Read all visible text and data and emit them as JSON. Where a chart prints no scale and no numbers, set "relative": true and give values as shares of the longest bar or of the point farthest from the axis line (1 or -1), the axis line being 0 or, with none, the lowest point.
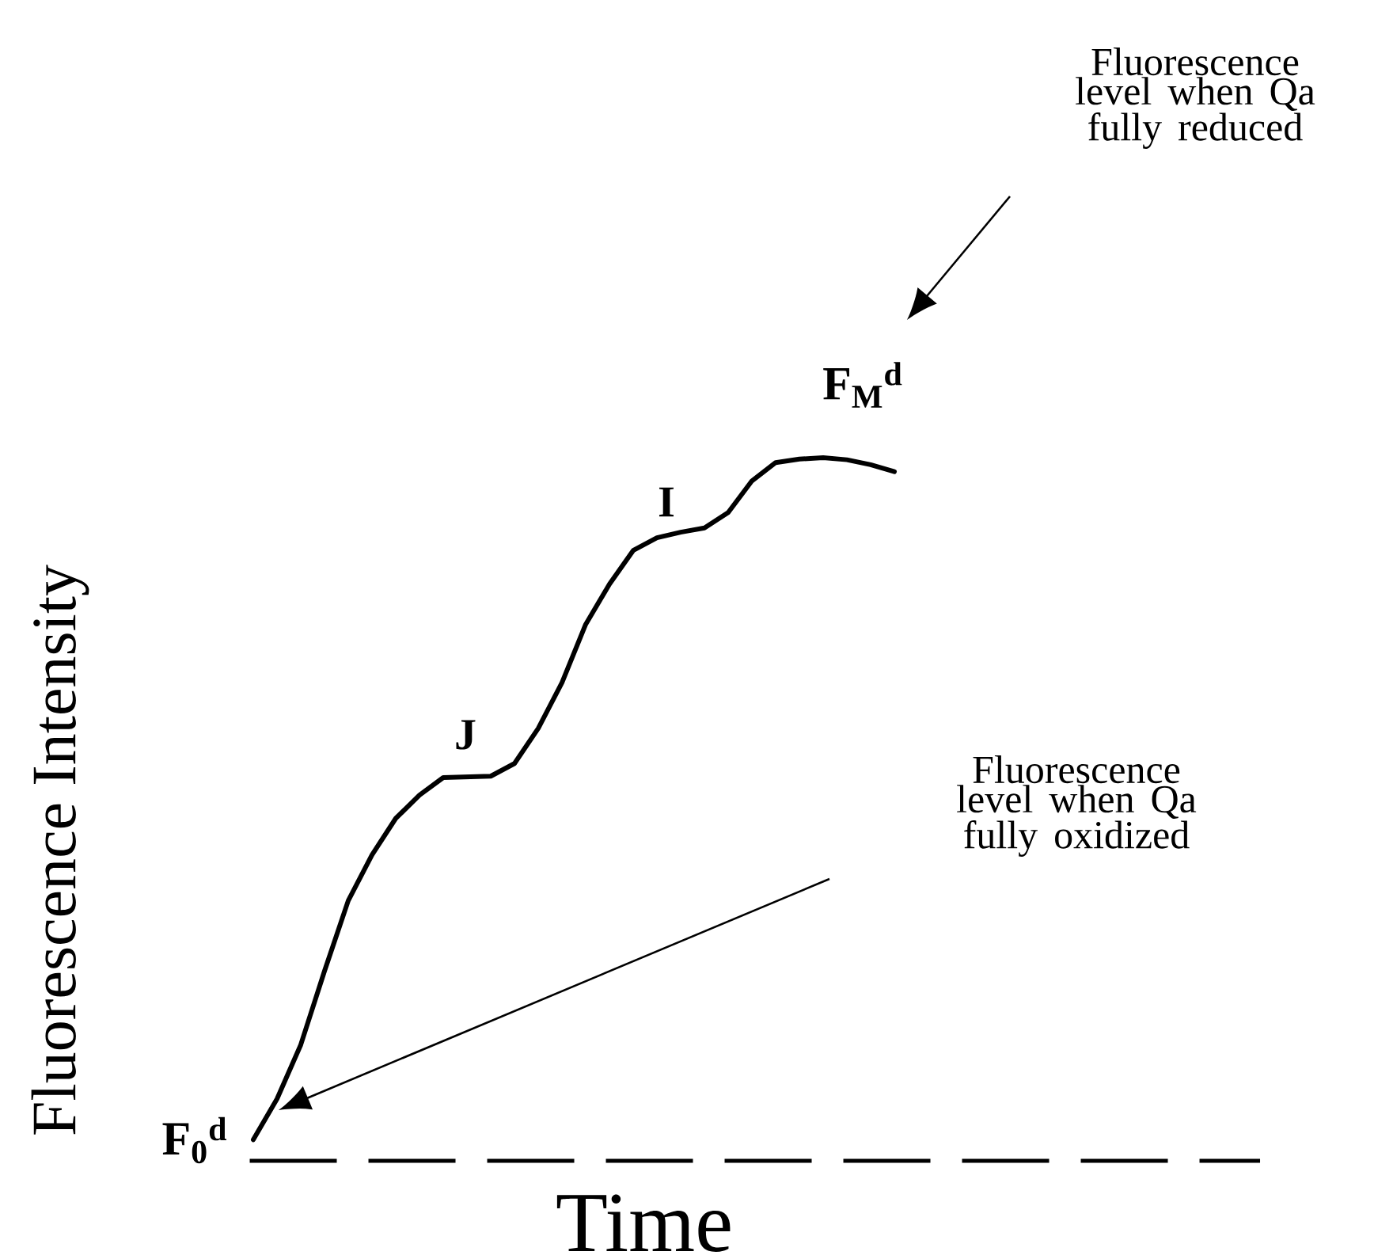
{
  "chart_data": {
    "type": "line",
    "relative": true,
    "xlabel": "Time",
    "ylabel": "Fluorescence Intensity",
    "categories": [
      null,
      null,
      null,
      null,
      null,
      null,
      null,
      null,
      null,
      null,
      null,
      null,
      null,
      null,
      null,
      null,
      null,
      null,
      null,
      null,
      null,
      null,
      null,
      null,
      null,
      null,
      null,
      null,
      null,
      null,
      null,
      null,
      null,
      null,
      null,
      null,
      null,
      null,
      null,
      null,
      null,
      null,
      null
    ],
    "series": [
      {
        "color": "#000000",
        "values": [
          0.03,
          0.088,
          0.165,
          0.27,
          0.37,
          0.435,
          0.487,
          0.52,
          0.545,
          0.546,
          0.547,
          0.565,
          0.615,
          0.68,
          0.763,
          0.82,
          0.868,
          0.886,
          0.894,
          0.9,
          0.922,
          0.967,
          0.993,
          0.998,
          1.0,
          0.997,
          0.99,
          0.98,
          null,
          null,
          null,
          null,
          null,
          null,
          null,
          null,
          null,
          null,
          null,
          null,
          null,
          null,
          null
        ]
      }
    ],
    "ref_lines": [
      {
        "axis": "y",
        "value": 0,
        "color": "#000000",
        "line_style": "dashed"
      }
    ],
    "annotations": [
      "Fluorescence level when Qa fully reduced",
      "F$_{M}$$^{d}$",
      "I",
      "J",
      "Fluorescence level when Qa fully oxidized",
      "F$_{0}$$^{d}$"
    ]
  }
}
